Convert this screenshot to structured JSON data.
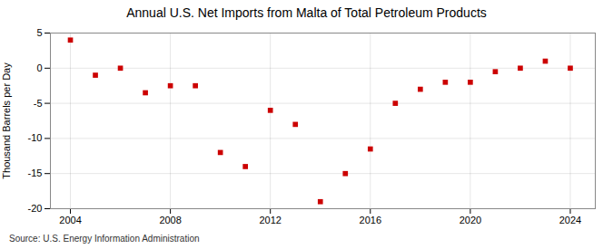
{
  "chart_data": {
    "type": "scatter",
    "title": "Annual U.S. Net Imports from Malta of Total Petroleum Products",
    "ylabel": "Thousand Barrels per Day",
    "source": "Source: U.S. Energy Information Administration",
    "x": [
      2004,
      2005,
      2006,
      2007,
      2008,
      2009,
      2010,
      2011,
      2012,
      2013,
      2014,
      2015,
      2016,
      2017,
      2018,
      2019,
      2020,
      2021,
      2022,
      2023,
      2024
    ],
    "values": [
      4.0,
      -1.0,
      0.0,
      -3.5,
      -2.5,
      -2.5,
      -12.0,
      -14.0,
      -6.0,
      -8.0,
      -19.0,
      -15.0,
      -11.5,
      -5.0,
      -3.0,
      -2.0,
      -2.0,
      -0.5,
      0.0,
      1.0,
      0.0
    ],
    "color": "#cc0000",
    "marker": "square",
    "xlim": [
      2003.2,
      2025.0
    ],
    "xticks": [
      2004,
      2008,
      2012,
      2016,
      2020,
      2024
    ],
    "ylim": [
      -20,
      5
    ],
    "yticks": [
      -20,
      -15,
      -10,
      -5,
      0,
      5
    ],
    "grid": true
  }
}
